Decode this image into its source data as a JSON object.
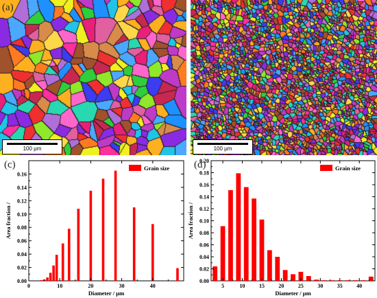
{
  "panels": {
    "a": "(a)",
    "b": "(b)",
    "c": "(c)",
    "d": "(d)"
  },
  "scale_bar": {
    "a": "100 μm",
    "b": "100 μm"
  },
  "chart_data": [
    {
      "type": "bar",
      "panel": "(c)",
      "xlabel": "Diameter / μm",
      "ylabel": "Area fraction /",
      "legend": "Grain size",
      "legend_position": "top-right",
      "color": "#ff0000",
      "xlim": [
        0,
        50
      ],
      "ylim": [
        0,
        0.18
      ],
      "xticks": [
        0,
        10,
        20,
        30,
        40
      ],
      "yticks": [
        0.0,
        0.02,
        0.04,
        0.06,
        0.08,
        0.1,
        0.12,
        0.14,
        0.16
      ],
      "x": [
        4,
        5,
        6,
        7,
        8,
        9,
        11,
        13,
        16,
        20,
        24,
        28,
        34,
        40,
        48
      ],
      "values": [
        0.001,
        0.002,
        0.005,
        0.012,
        0.023,
        0.039,
        0.056,
        0.078,
        0.108,
        0.135,
        0.153,
        0.165,
        0.11,
        0.085,
        0.019
      ],
      "grid": false
    },
    {
      "type": "bar",
      "panel": "(d)",
      "xlabel": "Diameter / μm",
      "ylabel": "Area fraction /",
      "legend": "Grain size",
      "legend_position": "top-right",
      "color": "#ff0000",
      "xlim": [
        2,
        44
      ],
      "ylim": [
        0,
        0.2
      ],
      "xticks": [
        5,
        10,
        15,
        20,
        25,
        30,
        35,
        40
      ],
      "yticks": [
        0.0,
        0.02,
        0.04,
        0.06,
        0.08,
        0.1,
        0.12,
        0.14,
        0.16,
        0.18,
        0.2
      ],
      "x": [
        3,
        5,
        7,
        9,
        11,
        13,
        15,
        17,
        19,
        21,
        23,
        25,
        27,
        29,
        31,
        33,
        35,
        37,
        39,
        41,
        43
      ],
      "values": [
        0.024,
        0.091,
        0.151,
        0.179,
        0.156,
        0.137,
        0.102,
        0.051,
        0.04,
        0.018,
        0.011,
        0.015,
        0.008,
        0.002,
        0.001,
        0.001,
        0.001,
        0.001,
        0.001,
        0.001,
        0.007
      ],
      "grid": false
    }
  ]
}
